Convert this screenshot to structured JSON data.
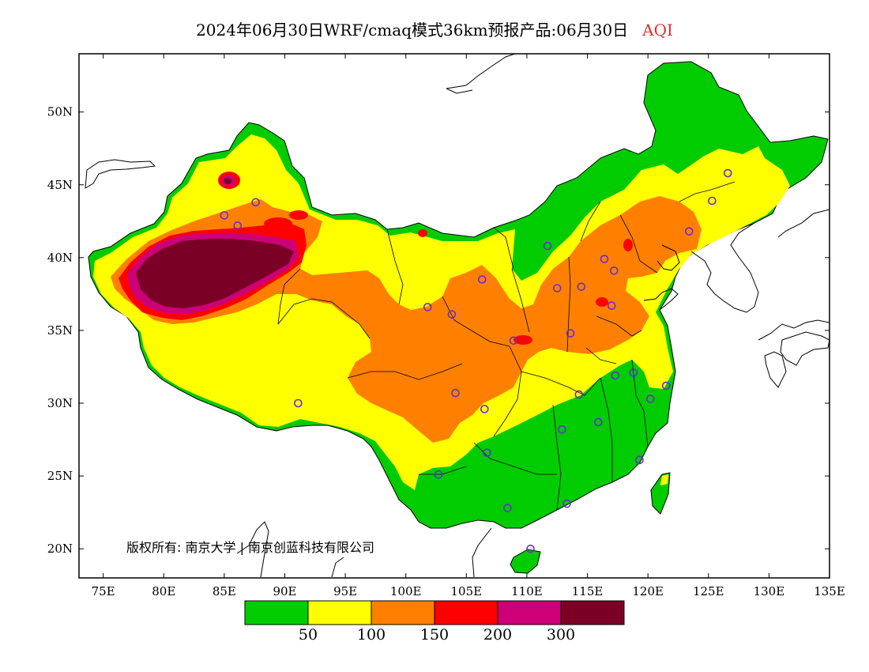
{
  "title": {
    "text": "2024年06月30日WRF/cmaq模式36km预报产品:06月30日",
    "variable": "AQI",
    "variable_color": "#e03030"
  },
  "copyright": "版权所有: 南京大学 | 南京创蓝科技有限公司",
  "axes": {
    "lon_labels": [
      "75E",
      "80E",
      "85E",
      "90E",
      "95E",
      "100E",
      "105E",
      "110E",
      "115E",
      "120E",
      "125E",
      "130E",
      "135E"
    ],
    "lat_labels": [
      "20N",
      "25N",
      "30N",
      "35N",
      "40N",
      "45N",
      "50N"
    ],
    "lon_range": [
      73,
      135
    ],
    "lat_range": [
      18,
      54
    ]
  },
  "legend": {
    "colors": [
      "#00cc00",
      "#ffff00",
      "#ff8000",
      "#ff0000",
      "#cc0077",
      "#7a0026"
    ],
    "labels": [
      "50",
      "100",
      "150",
      "200",
      "300"
    ]
  },
  "stations": [
    {
      "lon": 87.6,
      "lat": 43.8
    },
    {
      "lon": 91.1,
      "lat": 30.0
    },
    {
      "lon": 101.8,
      "lat": 36.6
    },
    {
      "lon": 103.8,
      "lat": 36.1
    },
    {
      "lon": 106.3,
      "lat": 38.5
    },
    {
      "lon": 104.1,
      "lat": 30.7
    },
    {
      "lon": 106.5,
      "lat": 29.6
    },
    {
      "lon": 106.7,
      "lat": 26.6
    },
    {
      "lon": 102.7,
      "lat": 25.1
    },
    {
      "lon": 108.4,
      "lat": 22.8
    },
    {
      "lon": 110.3,
      "lat": 20.0
    },
    {
      "lon": 113.3,
      "lat": 23.1
    },
    {
      "lon": 112.9,
      "lat": 28.2
    },
    {
      "lon": 114.3,
      "lat": 30.6
    },
    {
      "lon": 115.9,
      "lat": 28.7
    },
    {
      "lon": 117.3,
      "lat": 31.9
    },
    {
      "lon": 118.8,
      "lat": 32.1
    },
    {
      "lon": 120.2,
      "lat": 30.3
    },
    {
      "lon": 121.5,
      "lat": 31.2
    },
    {
      "lon": 119.3,
      "lat": 26.1
    },
    {
      "lon": 108.9,
      "lat": 34.3
    },
    {
      "lon": 113.6,
      "lat": 34.8
    },
    {
      "lon": 112.5,
      "lat": 37.9
    },
    {
      "lon": 114.5,
      "lat": 38.0
    },
    {
      "lon": 117.0,
      "lat": 36.7
    },
    {
      "lon": 116.4,
      "lat": 39.9
    },
    {
      "lon": 117.2,
      "lat": 39.1
    },
    {
      "lon": 111.7,
      "lat": 40.8
    },
    {
      "lon": 123.4,
      "lat": 41.8
    },
    {
      "lon": 125.3,
      "lat": 43.9
    },
    {
      "lon": 126.6,
      "lat": 45.8
    },
    {
      "lon": 85.0,
      "lat": 42.9
    },
    {
      "lon": 86.1,
      "lat": 42.2
    }
  ]
}
